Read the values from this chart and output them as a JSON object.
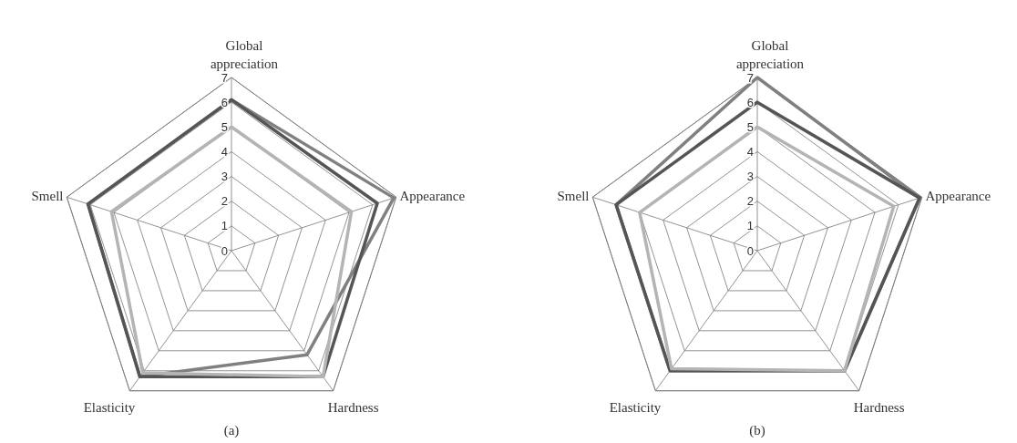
{
  "chart_data": [
    {
      "type": "radar",
      "categories": [
        "Global appreciation",
        "Appearance",
        "Hardness",
        "Elasticity",
        "Smell"
      ],
      "ylim": [
        0,
        7
      ],
      "yticks": [
        0,
        1,
        2,
        3,
        4,
        5,
        6,
        7
      ],
      "grid": true,
      "annotations": [
        "(a)"
      ],
      "series": [
        {
          "color": "#808080",
          "values": [
            6.1,
            6.9,
            5.2,
            6.3,
            6.1
          ]
        },
        {
          "color": "#555555",
          "values": [
            6.1,
            6.2,
            6.3,
            6.3,
            6.1
          ]
        },
        {
          "color": "#b4b4b4",
          "values": [
            5.0,
            5.1,
            6.3,
            6.1,
            5.1
          ]
        }
      ]
    },
    {
      "type": "radar",
      "categories": [
        "Global appreciation",
        "Appearance",
        "Hardness",
        "Elasticity",
        "Smell"
      ],
      "ylim": [
        0,
        7
      ],
      "yticks": [
        0,
        1,
        2,
        3,
        4,
        5,
        6,
        7
      ],
      "grid": true,
      "annotations": [
        "(b)"
      ],
      "series": [
        {
          "color": "#808080",
          "values": [
            7.0,
            6.9,
            6.0,
            6.0,
            6.0
          ]
        },
        {
          "color": "#555555",
          "values": [
            6.0,
            6.9,
            6.0,
            6.0,
            6.0
          ]
        },
        {
          "color": "#b4b4b4",
          "values": [
            5.0,
            5.8,
            6.0,
            5.9,
            5.0
          ]
        }
      ]
    }
  ]
}
